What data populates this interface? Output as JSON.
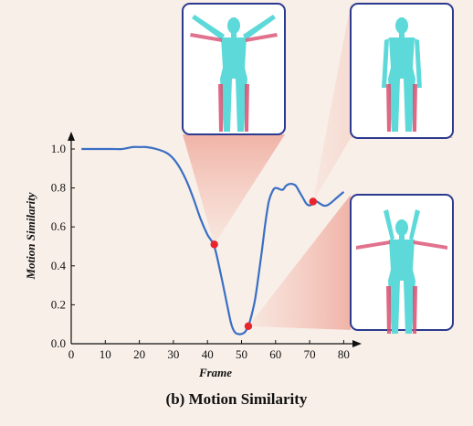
{
  "caption": "(b) Motion Similarity",
  "chart_data": {
    "type": "line",
    "title": "",
    "xlabel": "Frame",
    "ylabel": "Motion Similarity",
    "xlim": [
      0,
      82
    ],
    "ylim": [
      0,
      1.05
    ],
    "xticks": [
      0,
      10,
      20,
      30,
      40,
      50,
      60,
      70,
      80
    ],
    "yticks": [
      0.0,
      0.2,
      0.4,
      0.6,
      0.8,
      1.0
    ],
    "series": [
      {
        "color": "#3a6fc4",
        "x": [
          3,
          8,
          12,
          15,
          18,
          20,
          22,
          25,
          28,
          30,
          32,
          34,
          36,
          38,
          40,
          42,
          44,
          46,
          47,
          48,
          49,
          50,
          51,
          52,
          53,
          54,
          55,
          56,
          57,
          58,
          59,
          60,
          62,
          63,
          64,
          65,
          66,
          67,
          68,
          69,
          70,
          71,
          72,
          73,
          74,
          75,
          76,
          78,
          80
        ],
        "y": [
          1.0,
          1.0,
          1.0,
          1.0,
          1.01,
          1.01,
          1.01,
          1.0,
          0.98,
          0.95,
          0.9,
          0.83,
          0.74,
          0.64,
          0.56,
          0.5,
          0.35,
          0.18,
          0.1,
          0.06,
          0.05,
          0.05,
          0.06,
          0.09,
          0.15,
          0.23,
          0.35,
          0.48,
          0.62,
          0.73,
          0.78,
          0.8,
          0.79,
          0.81,
          0.82,
          0.82,
          0.81,
          0.78,
          0.75,
          0.72,
          0.71,
          0.72,
          0.73,
          0.72,
          0.71,
          0.71,
          0.72,
          0.75,
          0.78
        ]
      }
    ],
    "highlight_points": [
      {
        "x": 42,
        "y": 0.51,
        "color": "#e8242c"
      },
      {
        "x": 52,
        "y": 0.09,
        "color": "#e8242c"
      },
      {
        "x": 71,
        "y": 0.73,
        "color": "#e8242c"
      }
    ]
  },
  "thumbnails": [
    {
      "name": "raised-arms-pose",
      "body_color": "#5ed9d9",
      "accent_color": "#d94f70"
    },
    {
      "name": "standing-pose",
      "body_color": "#5ed9d9",
      "accent_color": "#d94f70"
    },
    {
      "name": "arms-overhead-pose",
      "body_color": "#5ed9d9",
      "accent_color": "#d94f70"
    }
  ],
  "colors": {
    "background": "#f8efe8",
    "panel_border": "#2b3a8f",
    "beam": "#e89a8a"
  }
}
